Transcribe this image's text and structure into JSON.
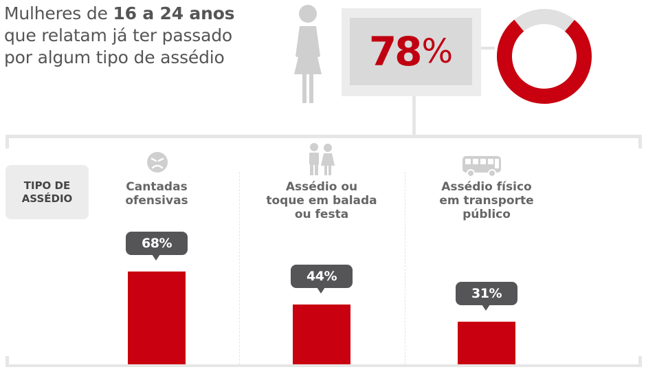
{
  "headline": {
    "line1_prefix": "Mulheres de ",
    "line1_bold": "16 a 24 anos",
    "line2": "que relatam já ter passado",
    "line3": "por algum tipo de assédio"
  },
  "main_stat": {
    "value": "78",
    "unit": "%",
    "fraction": 0.78
  },
  "type_badge": "TIPO DE\nASSÉDIO",
  "colors": {
    "accent": "#c8000f",
    "donut_track": "#e0e0e0",
    "tooltip": "#555558",
    "figure": "#cfcfcf"
  },
  "icons": [
    "woman-icon",
    "angry-face-icon",
    "couple-icon",
    "bus-icon"
  ],
  "chart_data": {
    "type": "bar",
    "categories": [
      "Cantadas\nofensivas",
      "Assédio ou\ntoque em balada\nou festa",
      "Assédio físico\nem transporte\npúblico"
    ],
    "values": [
      68,
      44,
      31
    ],
    "value_labels": [
      "68%",
      "44%",
      "31%"
    ],
    "ylim": [
      0,
      100
    ],
    "xlabel": "",
    "ylabel": ""
  }
}
